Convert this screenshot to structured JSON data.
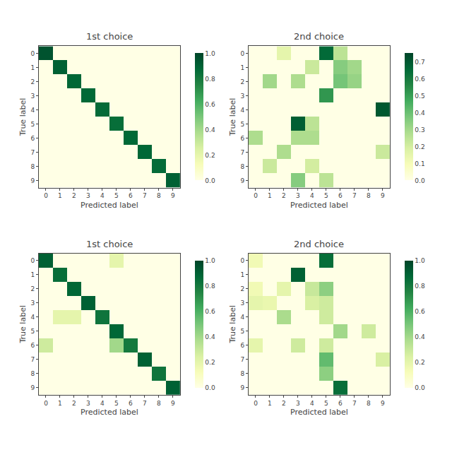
{
  "chart_data": [
    {
      "type": "heatmap",
      "title": "1st choice",
      "xlabel": "Predicted label",
      "ylabel": "True label",
      "x": [
        "0",
        "1",
        "2",
        "3",
        "4",
        "5",
        "6",
        "7",
        "8",
        "9"
      ],
      "y": [
        "0",
        "1",
        "2",
        "3",
        "4",
        "5",
        "6",
        "7",
        "8",
        "9"
      ],
      "values": [
        [
          0.95,
          0.0,
          0.0,
          0.0,
          0.0,
          0.0,
          0.0,
          0.0,
          0.0,
          0.0
        ],
        [
          0.0,
          0.9,
          0.0,
          0.0,
          0.0,
          0.0,
          0.0,
          0.0,
          0.0,
          0.0
        ],
        [
          0.0,
          0.0,
          0.88,
          0.0,
          0.0,
          0.0,
          0.0,
          0.0,
          0.0,
          0.0
        ],
        [
          0.0,
          0.0,
          0.0,
          0.87,
          0.0,
          0.0,
          0.0,
          0.0,
          0.0,
          0.0
        ],
        [
          0.0,
          0.0,
          0.0,
          0.0,
          0.86,
          0.0,
          0.0,
          0.0,
          0.0,
          0.0
        ],
        [
          0.0,
          0.0,
          0.0,
          0.0,
          0.0,
          0.85,
          0.0,
          0.0,
          0.0,
          0.0
        ],
        [
          0.0,
          0.0,
          0.0,
          0.0,
          0.0,
          0.0,
          0.87,
          0.0,
          0.0,
          0.0
        ],
        [
          0.0,
          0.0,
          0.0,
          0.0,
          0.0,
          0.0,
          0.0,
          0.88,
          0.0,
          0.0
        ],
        [
          0.0,
          0.0,
          0.0,
          0.0,
          0.0,
          0.0,
          0.0,
          0.0,
          0.86,
          0.0
        ],
        [
          0.0,
          0.0,
          0.0,
          0.0,
          0.0,
          0.0,
          0.0,
          0.0,
          0.0,
          0.9
        ]
      ],
      "color": "YlGn",
      "grid": false,
      "colorbar_range": [
        0.0,
        1.0
      ],
      "colorbar_ticks": [
        {
          "value": 0.0,
          "label": "0.0"
        },
        0.2,
        0.4,
        0.6,
        0.8,
        {
          "value": 1.0,
          "label": "1.0"
        }
      ]
    },
    {
      "type": "heatmap",
      "title": "2nd choice",
      "xlabel": "Predicted label",
      "ylabel": "True label",
      "x": [
        "0",
        "1",
        "2",
        "3",
        "4",
        "5",
        "6",
        "7",
        "8",
        "9"
      ],
      "y": [
        "0",
        "1",
        "2",
        "3",
        "4",
        "5",
        "6",
        "7",
        "8",
        "9"
      ],
      "values": [
        [
          0.0,
          0.0,
          0.15,
          0.0,
          0.0,
          0.65,
          0.25,
          0.0,
          0.0,
          0.0
        ],
        [
          0.0,
          0.0,
          0.0,
          0.0,
          0.22,
          0.0,
          0.35,
          0.3,
          0.0,
          0.0
        ],
        [
          0.0,
          0.3,
          0.0,
          0.28,
          0.0,
          0.0,
          0.38,
          0.32,
          0.0,
          0.0
        ],
        [
          0.0,
          0.0,
          0.0,
          0.0,
          0.0,
          0.52,
          0.0,
          0.0,
          0.0,
          0.0
        ],
        [
          0.0,
          0.0,
          0.0,
          0.0,
          0.0,
          0.0,
          0.0,
          0.0,
          0.0,
          0.7
        ],
        [
          0.0,
          0.0,
          0.0,
          0.68,
          0.25,
          0.0,
          0.0,
          0.0,
          0.0,
          0.0
        ],
        [
          0.28,
          0.0,
          0.0,
          0.28,
          0.28,
          0.0,
          0.0,
          0.0,
          0.0,
          0.0
        ],
        [
          0.0,
          0.0,
          0.28,
          0.0,
          0.0,
          0.0,
          0.0,
          0.0,
          0.0,
          0.22
        ],
        [
          0.0,
          0.22,
          0.0,
          0.0,
          0.2,
          0.0,
          0.0,
          0.0,
          0.0,
          0.0
        ],
        [
          0.0,
          0.0,
          0.0,
          0.35,
          0.0,
          0.25,
          0.0,
          0.0,
          0.0,
          0.0
        ]
      ],
      "color": "YlGn",
      "grid": false,
      "colorbar_range": [
        0.0,
        0.75
      ],
      "colorbar_ticks": [
        {
          "value": 0.0,
          "label": "0.0"
        },
        0.1,
        0.2,
        0.3,
        0.4,
        0.5,
        0.6,
        0.7
      ]
    },
    {
      "type": "heatmap",
      "title": "1st choice",
      "xlabel": "Predicted label",
      "ylabel": "True label",
      "x": [
        "0",
        "1",
        "2",
        "3",
        "4",
        "5",
        "6",
        "7",
        "8",
        "9"
      ],
      "y": [
        "0",
        "1",
        "2",
        "3",
        "4",
        "5",
        "6",
        "7",
        "8",
        "9"
      ],
      "values": [
        [
          0.9,
          0.0,
          0.0,
          0.0,
          0.0,
          0.2,
          0.0,
          0.0,
          0.0,
          0.0
        ],
        [
          0.0,
          0.85,
          0.0,
          0.0,
          0.0,
          0.0,
          0.0,
          0.0,
          0.0,
          0.0
        ],
        [
          0.0,
          0.0,
          0.88,
          0.0,
          0.0,
          0.0,
          0.0,
          0.0,
          0.0,
          0.0
        ],
        [
          0.0,
          0.0,
          0.0,
          0.9,
          0.0,
          0.0,
          0.0,
          0.0,
          0.0,
          0.0
        ],
        [
          0.0,
          0.2,
          0.2,
          0.0,
          0.82,
          0.0,
          0.0,
          0.0,
          0.0,
          0.0
        ],
        [
          0.0,
          0.0,
          0.0,
          0.0,
          0.0,
          0.88,
          0.0,
          0.0,
          0.0,
          0.0
        ],
        [
          0.28,
          0.0,
          0.0,
          0.0,
          0.0,
          0.4,
          0.8,
          0.0,
          0.0,
          0.0
        ],
        [
          0.0,
          0.0,
          0.0,
          0.0,
          0.0,
          0.0,
          0.0,
          0.9,
          0.0,
          0.0
        ],
        [
          0.0,
          0.0,
          0.0,
          0.0,
          0.0,
          0.0,
          0.0,
          0.0,
          0.82,
          0.0
        ],
        [
          0.0,
          0.0,
          0.0,
          0.0,
          0.0,
          0.0,
          0.0,
          0.0,
          0.0,
          0.9
        ]
      ],
      "color": "YlGn",
      "grid": false,
      "colorbar_range": [
        0.0,
        1.0
      ],
      "colorbar_ticks": [
        {
          "value": 0.0,
          "label": "0.0"
        },
        0.2,
        0.4,
        0.6,
        0.8,
        {
          "value": 1.0,
          "label": "1.0"
        }
      ]
    },
    {
      "type": "heatmap",
      "title": "2nd choice",
      "xlabel": "Predicted label",
      "ylabel": "True label",
      "x": [
        "0",
        "1",
        "2",
        "3",
        "4",
        "5",
        "6",
        "7",
        "8",
        "9"
      ],
      "y": [
        "0",
        "1",
        "2",
        "3",
        "4",
        "5",
        "6",
        "7",
        "8",
        "9"
      ],
      "values": [
        [
          0.15,
          0.0,
          0.0,
          0.0,
          0.0,
          0.85,
          0.0,
          0.0,
          0.0,
          0.0
        ],
        [
          0.0,
          0.0,
          0.0,
          0.9,
          0.0,
          0.0,
          0.0,
          0.0,
          0.0,
          0.0
        ],
        [
          0.15,
          0.0,
          0.2,
          0.0,
          0.3,
          0.45,
          0.0,
          0.0,
          0.0,
          0.0
        ],
        [
          0.2,
          0.18,
          0.0,
          0.0,
          0.25,
          0.28,
          0.0,
          0.0,
          0.0,
          0.0
        ],
        [
          0.0,
          0.0,
          0.38,
          0.0,
          0.0,
          0.28,
          0.0,
          0.0,
          0.0,
          0.0
        ],
        [
          0.0,
          0.0,
          0.0,
          0.0,
          0.0,
          0.0,
          0.4,
          0.0,
          0.28,
          0.0
        ],
        [
          0.2,
          0.0,
          0.0,
          0.28,
          0.0,
          0.28,
          0.0,
          0.0,
          0.0,
          0.0
        ],
        [
          0.0,
          0.0,
          0.0,
          0.0,
          0.0,
          0.55,
          0.0,
          0.0,
          0.0,
          0.25
        ],
        [
          0.0,
          0.0,
          0.0,
          0.0,
          0.0,
          0.45,
          0.0,
          0.0,
          0.0,
          0.0
        ],
        [
          0.0,
          0.0,
          0.0,
          0.0,
          0.0,
          0.0,
          0.85,
          0.0,
          0.0,
          0.0
        ]
      ],
      "color": "YlGn",
      "grid": false,
      "colorbar_range": [
        0.0,
        1.0
      ],
      "colorbar_ticks": [
        {
          "value": 0.0,
          "label": "0.0"
        },
        0.2,
        0.4,
        0.6,
        0.8,
        {
          "value": 1.0,
          "label": "1.0"
        }
      ]
    }
  ]
}
